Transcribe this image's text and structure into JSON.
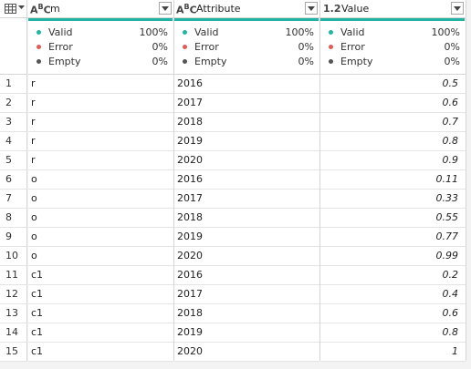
{
  "columns": [
    {
      "name": "m",
      "type_icon": "ABC",
      "type_main": "A",
      "type_sup": "B",
      "type_sub": "C"
    },
    {
      "name": "Attribute",
      "type_icon": "ABC",
      "type_main": "A",
      "type_sup": "B",
      "type_sub": "C"
    },
    {
      "name": "Value",
      "type_icon": "1.2"
    }
  ],
  "profile": [
    {
      "valid_label": "Valid",
      "valid_pct": "100%",
      "error_label": "Error",
      "error_pct": "0%",
      "empty_label": "Empty",
      "empty_pct": "0%"
    },
    {
      "valid_label": "Valid",
      "valid_pct": "100%",
      "error_label": "Error",
      "error_pct": "0%",
      "empty_label": "Empty",
      "empty_pct": "0%"
    },
    {
      "valid_label": "Valid",
      "valid_pct": "100%",
      "error_label": "Error",
      "error_pct": "0%",
      "empty_label": "Empty",
      "empty_pct": "0%"
    }
  ],
  "colors": {
    "valid": "#1fb5a4",
    "error": "#e05b5b",
    "empty": "#555555",
    "quality_bar": "#20b3a3"
  },
  "rows": [
    {
      "n": "1",
      "m": "r",
      "attribute": "2016",
      "value": "0.5"
    },
    {
      "n": "2",
      "m": "r",
      "attribute": "2017",
      "value": "0.6"
    },
    {
      "n": "3",
      "m": "r",
      "attribute": "2018",
      "value": "0.7"
    },
    {
      "n": "4",
      "m": "r",
      "attribute": "2019",
      "value": "0.8"
    },
    {
      "n": "5",
      "m": "r",
      "attribute": "2020",
      "value": "0.9"
    },
    {
      "n": "6",
      "m": "o",
      "attribute": "2016",
      "value": "0.11"
    },
    {
      "n": "7",
      "m": "o",
      "attribute": "2017",
      "value": "0.33"
    },
    {
      "n": "8",
      "m": "o",
      "attribute": "2018",
      "value": "0.55"
    },
    {
      "n": "9",
      "m": "o",
      "attribute": "2019",
      "value": "0.77"
    },
    {
      "n": "10",
      "m": "o",
      "attribute": "2020",
      "value": "0.99"
    },
    {
      "n": "11",
      "m": "c1",
      "attribute": "2016",
      "value": "0.2"
    },
    {
      "n": "12",
      "m": "c1",
      "attribute": "2017",
      "value": "0.4"
    },
    {
      "n": "13",
      "m": "c1",
      "attribute": "2018",
      "value": "0.6"
    },
    {
      "n": "14",
      "m": "c1",
      "attribute": "2019",
      "value": "0.8"
    },
    {
      "n": "15",
      "m": "c1",
      "attribute": "2020",
      "value": "1"
    }
  ]
}
